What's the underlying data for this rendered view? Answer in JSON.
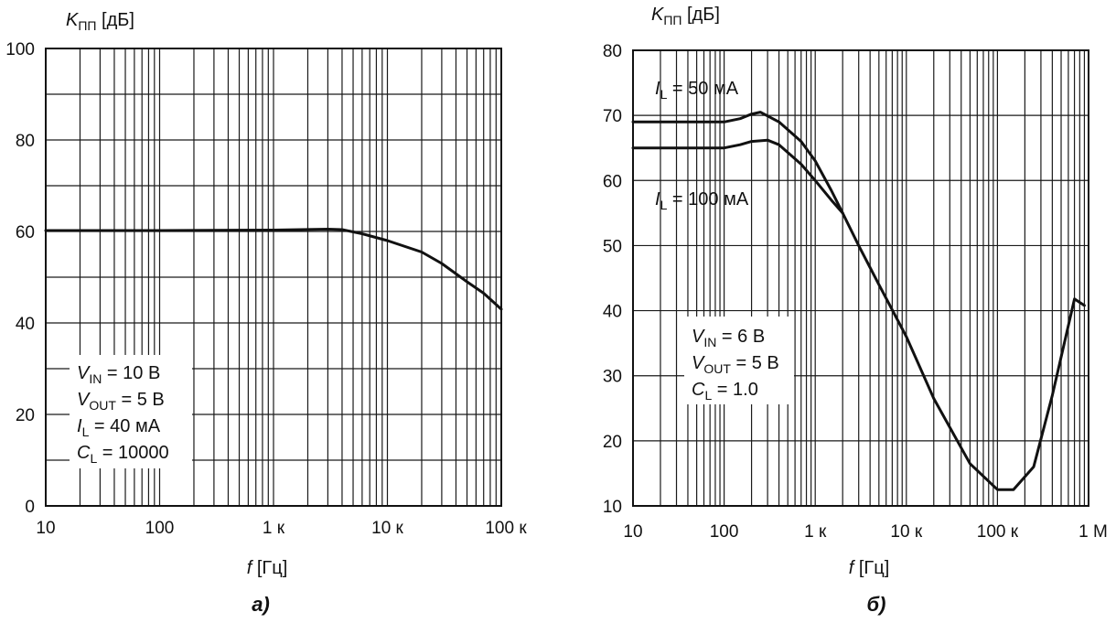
{
  "chart_data": [
    {
      "type": "line",
      "caption": "а)",
      "ylabel": {
        "main": "K",
        "sub": "ПП",
        "unit": "[дБ]"
      },
      "xlabel": {
        "main": "f",
        "unit": "[Гц]"
      },
      "x_scale": "log",
      "xlim": [
        10,
        100000
      ],
      "ylim": [
        0,
        100
      ],
      "x_ticks": [
        {
          "value": 10,
          "label": "10"
        },
        {
          "value": 100,
          "label": "100"
        },
        {
          "value": 1000,
          "label": "1 к"
        },
        {
          "value": 10000,
          "label": "10 к"
        },
        {
          "value": 100000,
          "label": "100 к"
        }
      ],
      "y_ticks": [
        {
          "value": 0,
          "label": "0"
        },
        {
          "value": 20,
          "label": "20"
        },
        {
          "value": 40,
          "label": "40"
        },
        {
          "value": 60,
          "label": "60"
        },
        {
          "value": 80,
          "label": "80"
        },
        {
          "value": 100,
          "label": "100"
        }
      ],
      "y_grid_step": 10,
      "grid": true,
      "annotations": [
        {
          "main": "V",
          "sub": "IN",
          "rest": " = 10 В"
        },
        {
          "main": "V",
          "sub": "OUT",
          "rest": " = 5 В"
        },
        {
          "main": "I",
          "sub": "L",
          "rest": " = 40 мА"
        },
        {
          "main": "C",
          "sub": "L",
          "rest": " = 10000"
        }
      ],
      "series": [
        {
          "x": [
            10,
            100,
            1000,
            3000,
            4000,
            6000,
            10000,
            20000,
            30000,
            50000,
            70000,
            100000
          ],
          "y": [
            60.2,
            60.2,
            60.3,
            60.5,
            60.4,
            59.5,
            58.0,
            55.5,
            53.0,
            49.0,
            46.5,
            43.0
          ]
        }
      ]
    },
    {
      "type": "line",
      "caption": "б)",
      "ylabel": {
        "main": "K",
        "sub": "ПП",
        "unit": "[дБ]"
      },
      "xlabel": {
        "main": "f",
        "unit": "[Гц]"
      },
      "x_scale": "log",
      "xlim": [
        10,
        1000000
      ],
      "ylim": [
        10,
        80
      ],
      "x_ticks": [
        {
          "value": 10,
          "label": "10"
        },
        {
          "value": 100,
          "label": "100"
        },
        {
          "value": 1000,
          "label": "1 к"
        },
        {
          "value": 10000,
          "label": "10 к"
        },
        {
          "value": 100000,
          "label": "100 к"
        },
        {
          "value": 1000000,
          "label": "1 М"
        }
      ],
      "y_ticks": [
        {
          "value": 10,
          "label": "10"
        },
        {
          "value": 20,
          "label": "20"
        },
        {
          "value": 30,
          "label": "30"
        },
        {
          "value": 40,
          "label": "40"
        },
        {
          "value": 50,
          "label": "50"
        },
        {
          "value": 60,
          "label": "60"
        },
        {
          "value": 70,
          "label": "70"
        },
        {
          "value": 80,
          "label": "80"
        }
      ],
      "y_grid_step": 10,
      "grid": true,
      "annotations": [
        {
          "main": "V",
          "sub": "IN",
          "rest": " = 6 В"
        },
        {
          "main": "V",
          "sub": "OUT",
          "rest": " = 5 В"
        },
        {
          "main": "C",
          "sub": "L",
          "rest": " = 1.0"
        }
      ],
      "series": [
        {
          "label": {
            "main": "I",
            "sub": "L",
            "rest": " = 50 мА"
          },
          "x": [
            10,
            100,
            150,
            200,
            250,
            400,
            700,
            1000,
            1500,
            2000,
            3000,
            5000,
            10000,
            20000,
            50000,
            100000,
            150000,
            250000,
            400000,
            700000,
            900000
          ],
          "y": [
            69.0,
            69.0,
            69.5,
            70.2,
            70.5,
            69.0,
            66.0,
            63.0,
            58.5,
            55.0,
            50.0,
            44.0,
            36.0,
            26.5,
            16.5,
            12.5,
            12.5,
            16.0,
            27.0,
            41.8,
            40.8
          ]
        },
        {
          "label": {
            "main": "I",
            "sub": "L",
            "rest": " = 100 мА"
          },
          "x": [
            10,
            100,
            150,
            200,
            300,
            400,
            700,
            1000,
            1500,
            2000
          ],
          "y": [
            65.0,
            65.0,
            65.5,
            66.0,
            66.2,
            65.5,
            62.5,
            60.0,
            57.0,
            55.0
          ]
        }
      ]
    }
  ]
}
